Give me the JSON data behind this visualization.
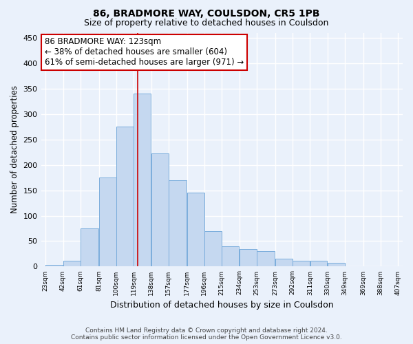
{
  "title1": "86, BRADMORE WAY, COULSDON, CR5 1PB",
  "title2": "Size of property relative to detached houses in Coulsdon",
  "xlabel": "Distribution of detached houses by size in Coulsdon",
  "ylabel": "Number of detached properties",
  "bin_edges": [
    23,
    42,
    61,
    81,
    100,
    119,
    138,
    157,
    177,
    196,
    215,
    234,
    253,
    273,
    292,
    311,
    330,
    349,
    369,
    388,
    407
  ],
  "bar_heights": [
    3,
    12,
    75,
    175,
    275,
    340,
    222,
    170,
    145,
    70,
    40,
    35,
    30,
    15,
    12,
    12,
    7,
    0,
    0,
    0
  ],
  "bar_color": "#c5d8f0",
  "bar_edge_color": "#7aaddc",
  "vertical_line_x": 123,
  "vertical_line_color": "#cc0000",
  "annotation_text": "86 BRADMORE WAY: 123sqm\n← 38% of detached houses are smaller (604)\n61% of semi-detached houses are larger (971) →",
  "annotation_box_color": "white",
  "annotation_box_edge_color": "#cc0000",
  "ylim": [
    0,
    460
  ],
  "yticks": [
    0,
    50,
    100,
    150,
    200,
    250,
    300,
    350,
    400,
    450
  ],
  "tick_labels": [
    "23sqm",
    "42sqm",
    "61sqm",
    "81sqm",
    "100sqm",
    "119sqm",
    "138sqm",
    "157sqm",
    "177sqm",
    "196sqm",
    "215sqm",
    "234sqm",
    "253sqm",
    "273sqm",
    "292sqm",
    "311sqm",
    "330sqm",
    "349sqm",
    "369sqm",
    "388sqm",
    "407sqm"
  ],
  "footer1": "Contains HM Land Registry data © Crown copyright and database right 2024.",
  "footer2": "Contains public sector information licensed under the Open Government Licence v3.0.",
  "background_color": "#eaf1fb",
  "grid_color": "white",
  "title1_fontsize": 10,
  "title2_fontsize": 9,
  "ylabel_fontsize": 8.5,
  "xlabel_fontsize": 9,
  "annotation_fontsize": 8.5,
  "footer_fontsize": 6.5
}
